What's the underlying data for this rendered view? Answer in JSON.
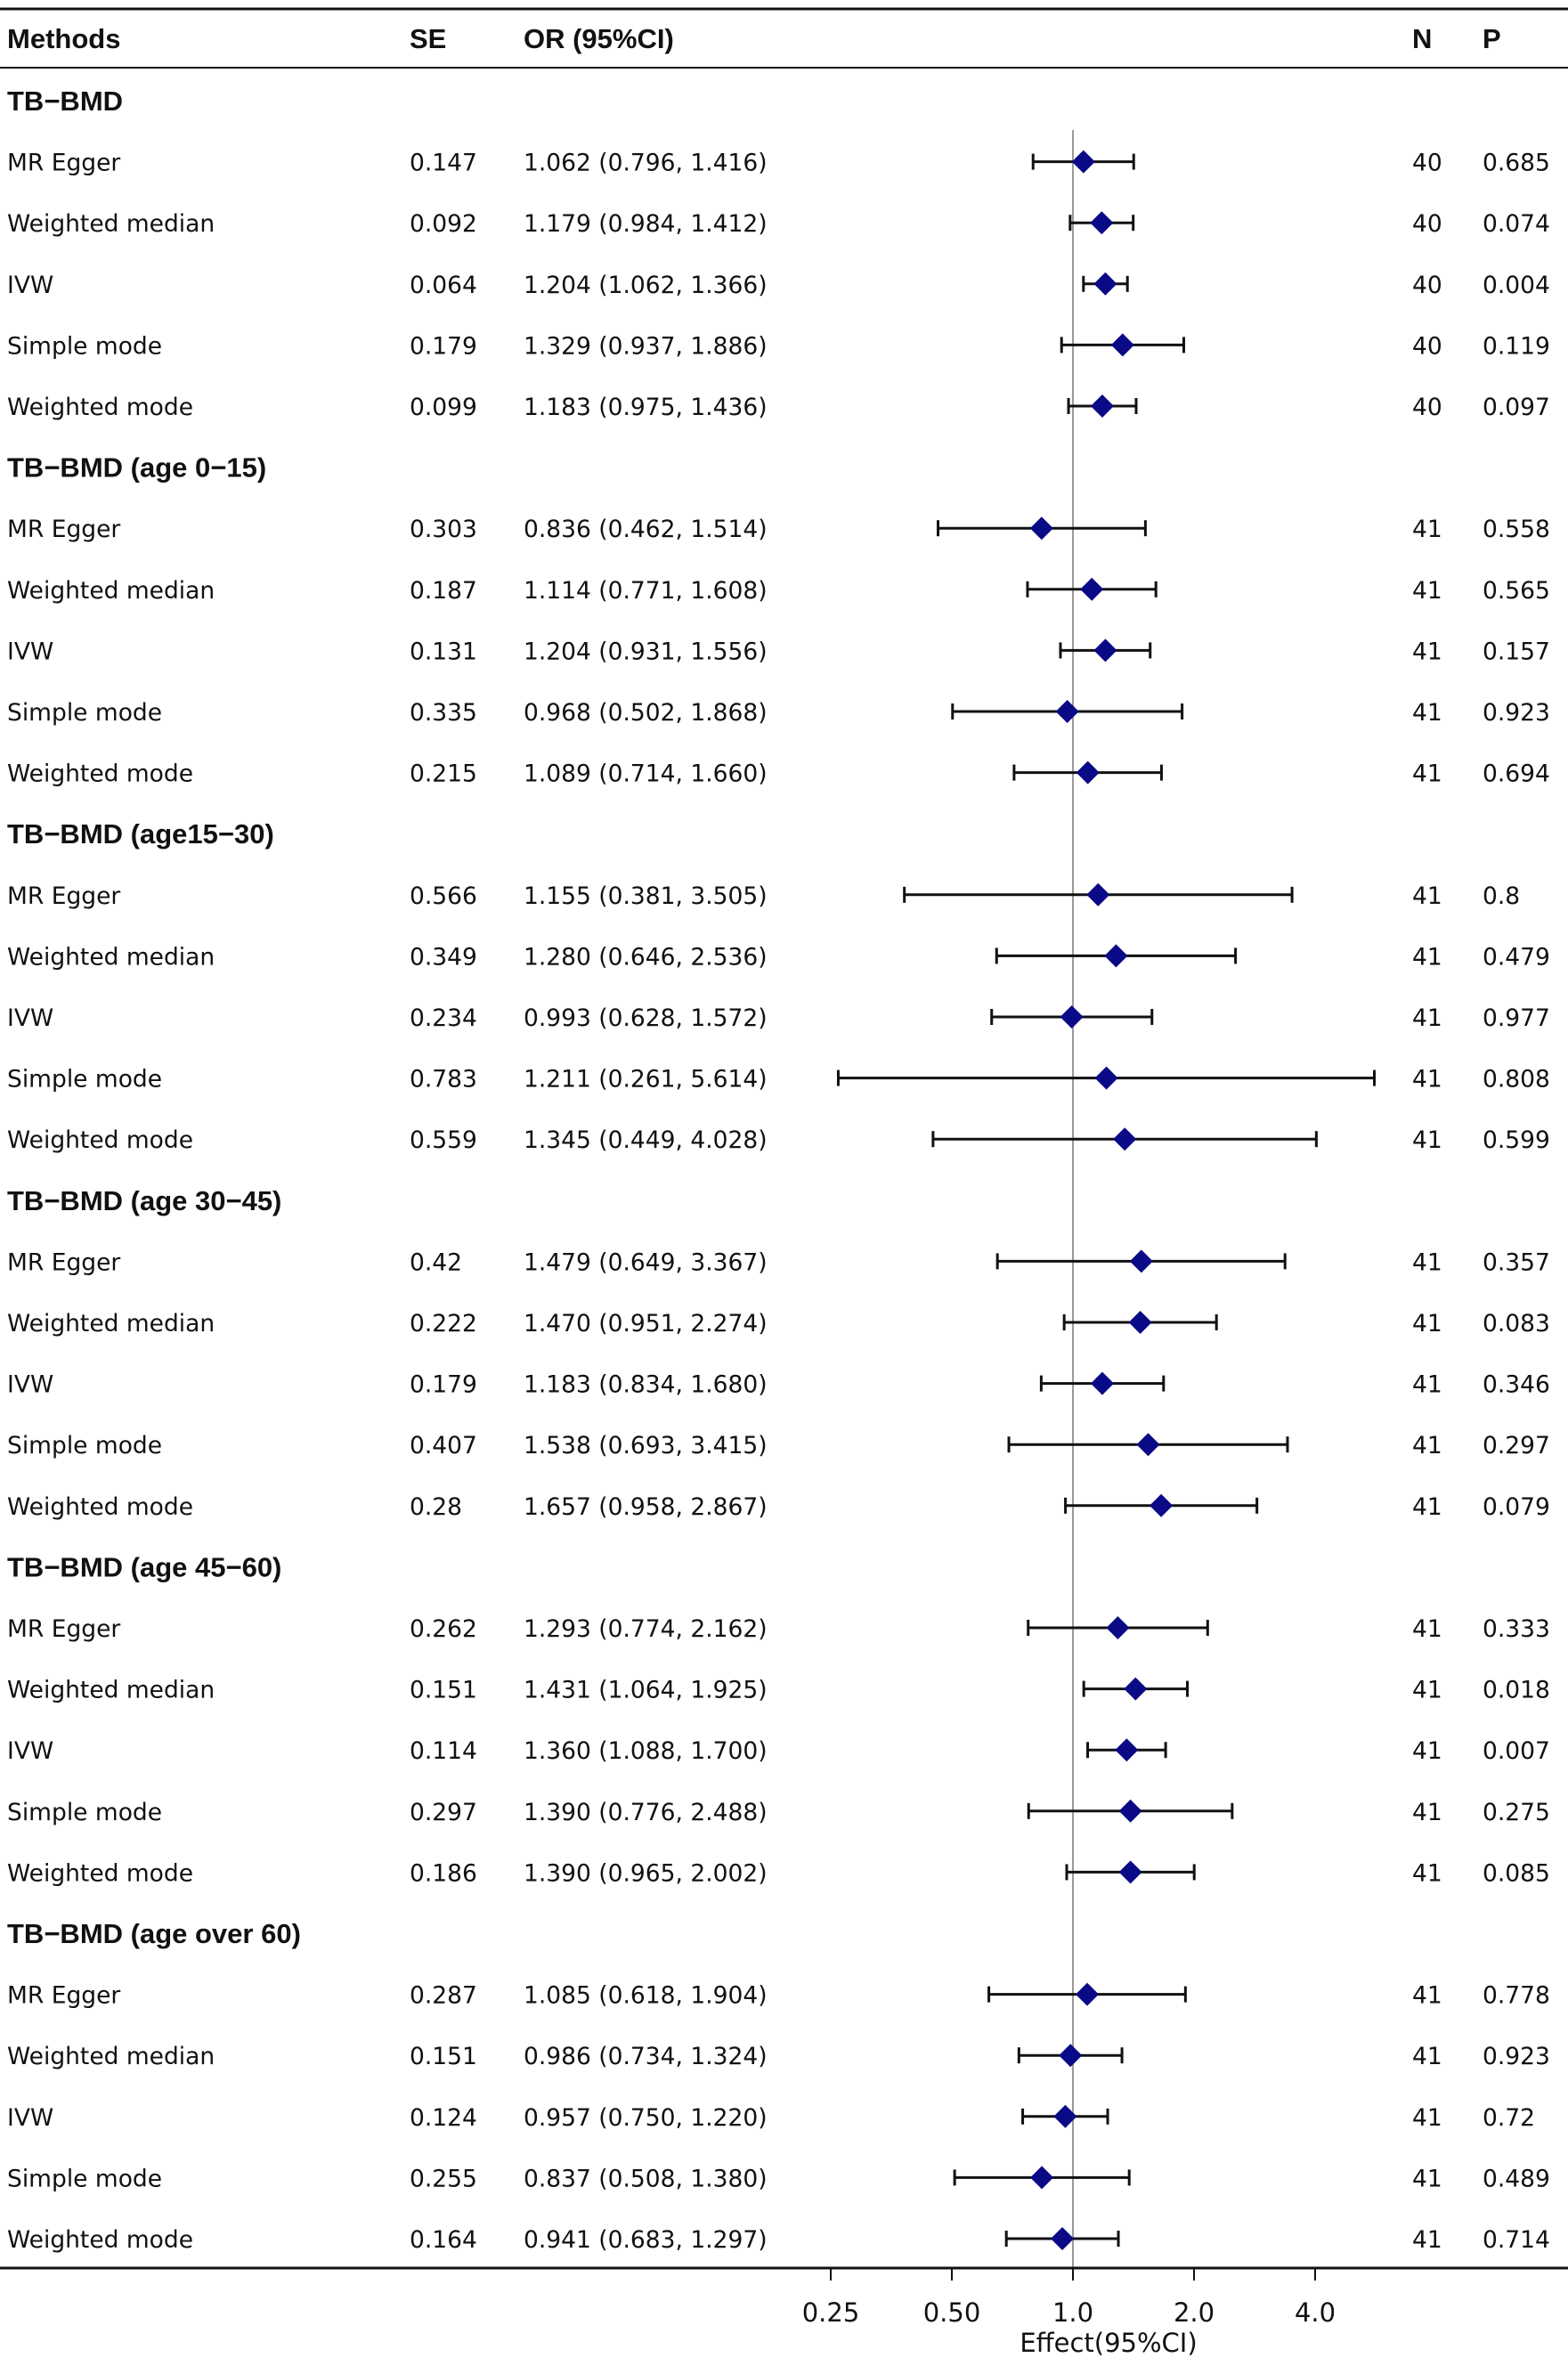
{
  "headers": {
    "methods": "Methods",
    "se": "SE",
    "or": "OR (95%CI)",
    "n": "N",
    "p": "P"
  },
  "colors": {
    "marker": "#0a0a86",
    "line": "#111111",
    "ref_line": "#9a9a9a"
  },
  "chart_data": {
    "type": "forest",
    "xscale": "log2",
    "xlim": [
      0.25,
      6.3
    ],
    "reference_value": 1.0,
    "xticks": [
      0.25,
      0.5,
      1.0,
      2.0,
      4.0
    ],
    "xtick_labels": [
      "0.25",
      "0.50",
      "1.0",
      "2.0",
      "4.0"
    ],
    "xlabel": "Effect(95%CI)",
    "groups": [
      {
        "title": "TB−BMD",
        "rows": [
          {
            "method": "MR Egger",
            "se": "0.147",
            "ci_text": "1.062 (0.796, 1.416)",
            "or": 1.062,
            "lo": 0.796,
            "hi": 1.416,
            "n": "40",
            "p": "0.685"
          },
          {
            "method": "Weighted median",
            "se": "0.092",
            "ci_text": "1.179 (0.984, 1.412)",
            "or": 1.179,
            "lo": 0.984,
            "hi": 1.412,
            "n": "40",
            "p": "0.074"
          },
          {
            "method": "IVW",
            "se": "0.064",
            "ci_text": "1.204 (1.062, 1.366)",
            "or": 1.204,
            "lo": 1.062,
            "hi": 1.366,
            "n": "40",
            "p": "0.004"
          },
          {
            "method": "Simple mode",
            "se": "0.179",
            "ci_text": "1.329 (0.937, 1.886)",
            "or": 1.329,
            "lo": 0.937,
            "hi": 1.886,
            "n": "40",
            "p": "0.119"
          },
          {
            "method": "Weighted mode",
            "se": "0.099",
            "ci_text": "1.183 (0.975, 1.436)",
            "or": 1.183,
            "lo": 0.975,
            "hi": 1.436,
            "n": "40",
            "p": "0.097"
          }
        ]
      },
      {
        "title": "TB−BMD (age 0−15)",
        "rows": [
          {
            "method": "MR Egger",
            "se": "0.303",
            "ci_text": "0.836 (0.462, 1.514)",
            "or": 0.836,
            "lo": 0.462,
            "hi": 1.514,
            "n": "41",
            "p": "0.558"
          },
          {
            "method": "Weighted median",
            "se": "0.187",
            "ci_text": "1.114 (0.771, 1.608)",
            "or": 1.114,
            "lo": 0.771,
            "hi": 1.608,
            "n": "41",
            "p": "0.565"
          },
          {
            "method": "IVW",
            "se": "0.131",
            "ci_text": "1.204 (0.931, 1.556)",
            "or": 1.204,
            "lo": 0.931,
            "hi": 1.556,
            "n": "41",
            "p": "0.157"
          },
          {
            "method": "Simple mode",
            "se": "0.335",
            "ci_text": "0.968 (0.502, 1.868)",
            "or": 0.968,
            "lo": 0.502,
            "hi": 1.868,
            "n": "41",
            "p": "0.923"
          },
          {
            "method": "Weighted mode",
            "se": "0.215",
            "ci_text": "1.089 (0.714, 1.660)",
            "or": 1.089,
            "lo": 0.714,
            "hi": 1.66,
            "n": "41",
            "p": "0.694"
          }
        ]
      },
      {
        "title": "TB−BMD (age15−30)",
        "rows": [
          {
            "method": "MR Egger",
            "se": "0.566",
            "ci_text": "1.155 (0.381, 3.505)",
            "or": 1.155,
            "lo": 0.381,
            "hi": 3.505,
            "n": "41",
            "p": "0.8"
          },
          {
            "method": "Weighted median",
            "se": "0.349",
            "ci_text": "1.280 (0.646, 2.536)",
            "or": 1.28,
            "lo": 0.646,
            "hi": 2.536,
            "n": "41",
            "p": "0.479"
          },
          {
            "method": "IVW",
            "se": "0.234",
            "ci_text": "0.993 (0.628, 1.572)",
            "or": 0.993,
            "lo": 0.628,
            "hi": 1.572,
            "n": "41",
            "p": "0.977"
          },
          {
            "method": "Simple mode",
            "se": "0.783",
            "ci_text": "1.211 (0.261, 5.614)",
            "or": 1.211,
            "lo": 0.261,
            "hi": 5.614,
            "n": "41",
            "p": "0.808"
          },
          {
            "method": "Weighted mode",
            "se": "0.559",
            "ci_text": "1.345 (0.449, 4.028)",
            "or": 1.345,
            "lo": 0.449,
            "hi": 4.028,
            "n": "41",
            "p": "0.599"
          }
        ]
      },
      {
        "title": "TB−BMD (age 30−45)",
        "rows": [
          {
            "method": "MR Egger",
            "se": "0.42",
            "ci_text": "1.479 (0.649, 3.367)",
            "or": 1.479,
            "lo": 0.649,
            "hi": 3.367,
            "n": "41",
            "p": "0.357"
          },
          {
            "method": "Weighted median",
            "se": "0.222",
            "ci_text": "1.470 (0.951, 2.274)",
            "or": 1.47,
            "lo": 0.951,
            "hi": 2.274,
            "n": "41",
            "p": "0.083"
          },
          {
            "method": "IVW",
            "se": "0.179",
            "ci_text": "1.183 (0.834, 1.680)",
            "or": 1.183,
            "lo": 0.834,
            "hi": 1.68,
            "n": "41",
            "p": "0.346"
          },
          {
            "method": "Simple mode",
            "se": "0.407",
            "ci_text": "1.538 (0.693, 3.415)",
            "or": 1.538,
            "lo": 0.693,
            "hi": 3.415,
            "n": "41",
            "p": "0.297"
          },
          {
            "method": "Weighted mode",
            "se": "0.28",
            "ci_text": "1.657 (0.958, 2.867)",
            "or": 1.657,
            "lo": 0.958,
            "hi": 2.867,
            "n": "41",
            "p": "0.079"
          }
        ]
      },
      {
        "title": "TB−BMD (age 45−60)",
        "rows": [
          {
            "method": "MR Egger",
            "se": "0.262",
            "ci_text": "1.293 (0.774, 2.162)",
            "or": 1.293,
            "lo": 0.774,
            "hi": 2.162,
            "n": "41",
            "p": "0.333"
          },
          {
            "method": "Weighted median",
            "se": "0.151",
            "ci_text": "1.431 (1.064, 1.925)",
            "or": 1.431,
            "lo": 1.064,
            "hi": 1.925,
            "n": "41",
            "p": "0.018"
          },
          {
            "method": "IVW",
            "se": "0.114",
            "ci_text": "1.360 (1.088, 1.700)",
            "or": 1.36,
            "lo": 1.088,
            "hi": 1.7,
            "n": "41",
            "p": "0.007"
          },
          {
            "method": "Simple mode",
            "se": "0.297",
            "ci_text": "1.390 (0.776, 2.488)",
            "or": 1.39,
            "lo": 0.776,
            "hi": 2.488,
            "n": "41",
            "p": "0.275"
          },
          {
            "method": "Weighted mode",
            "se": "0.186",
            "ci_text": "1.390 (0.965, 2.002)",
            "or": 1.39,
            "lo": 0.965,
            "hi": 2.002,
            "n": "41",
            "p": "0.085"
          }
        ]
      },
      {
        "title": "TB−BMD (age over 60)",
        "rows": [
          {
            "method": "MR Egger",
            "se": "0.287",
            "ci_text": "1.085 (0.618, 1.904)",
            "or": 1.085,
            "lo": 0.618,
            "hi": 1.904,
            "n": "41",
            "p": "0.778"
          },
          {
            "method": "Weighted median",
            "se": "0.151",
            "ci_text": "0.986 (0.734, 1.324)",
            "or": 0.986,
            "lo": 0.734,
            "hi": 1.324,
            "n": "41",
            "p": "0.923"
          },
          {
            "method": "IVW",
            "se": "0.124",
            "ci_text": "0.957 (0.750, 1.220)",
            "or": 0.957,
            "lo": 0.75,
            "hi": 1.22,
            "n": "41",
            "p": "0.72"
          },
          {
            "method": "Simple mode",
            "se": "0.255",
            "ci_text": "0.837 (0.508, 1.380)",
            "or": 0.837,
            "lo": 0.508,
            "hi": 1.38,
            "n": "41",
            "p": "0.489"
          },
          {
            "method": "Weighted mode",
            "se": "0.164",
            "ci_text": "0.941 (0.683, 1.297)",
            "or": 0.941,
            "lo": 0.683,
            "hi": 1.297,
            "n": "41",
            "p": "0.714"
          }
        ]
      }
    ]
  }
}
